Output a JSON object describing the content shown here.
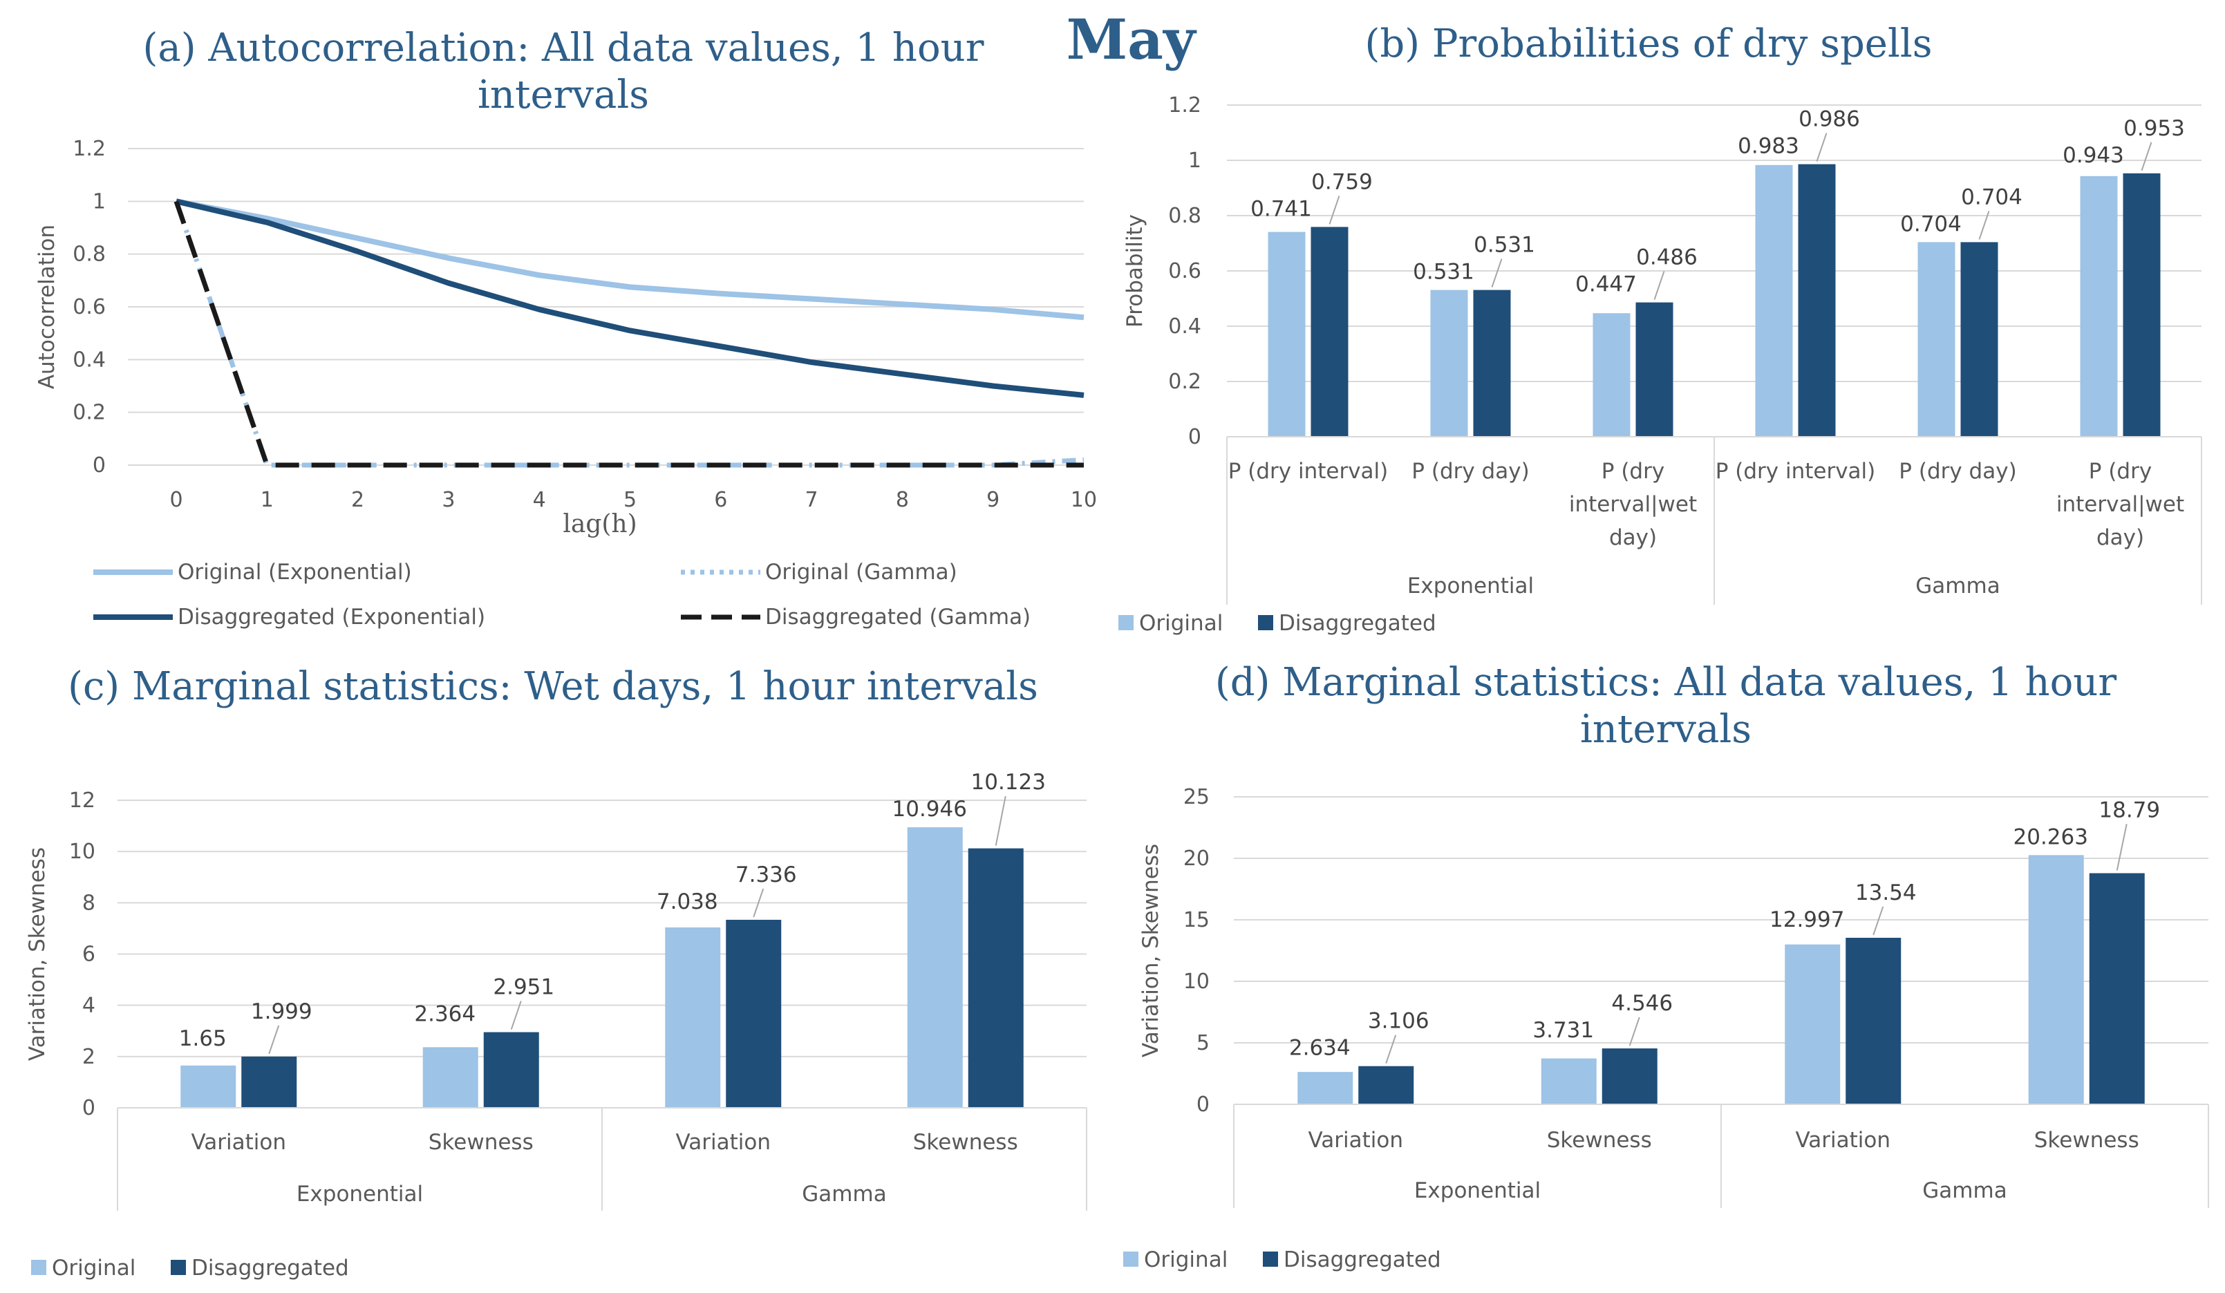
{
  "month": "May",
  "chart_data": [
    {
      "id": "a",
      "type": "line",
      "title": "(a) Autocorrelation: All data values, 1 hour intervals",
      "title_lines": [
        "(a) Autocorrelation: All data values, 1 hour",
        "intervals"
      ],
      "xlabel": "lag(h)",
      "ylabel": "Autocorrelation",
      "x": [
        0,
        1,
        2,
        3,
        4,
        5,
        6,
        7,
        8,
        9,
        10
      ],
      "x_tick_labels": [
        "0",
        "1",
        "2",
        "3",
        "4",
        "5",
        "6",
        "7",
        "8",
        "9",
        "10"
      ],
      "ylim": [
        0,
        1.2
      ],
      "y_ticks": [
        "0",
        "0.2",
        "0.4",
        "0.6",
        "0.8",
        "1",
        "1.2"
      ],
      "series": [
        {
          "name": "Original (Exponential)",
          "color": "#9dc3e6",
          "style": "solid",
          "values": [
            1,
            0.935,
            0.86,
            0.785,
            0.72,
            0.675,
            0.65,
            0.63,
            0.61,
            0.59,
            0.56
          ]
        },
        {
          "name": "Original (Gamma)",
          "color": "#9dc3e6",
          "style": "dot-dash",
          "values": [
            1,
            0,
            0,
            0,
            0,
            0,
            0,
            0,
            0,
            0,
            0.02
          ]
        },
        {
          "name": "Disaggregated (Exponential)",
          "color": "#1f4e79",
          "style": "solid",
          "values": [
            1,
            0.92,
            0.81,
            0.69,
            0.59,
            0.51,
            0.45,
            0.39,
            0.345,
            0.3,
            0.265
          ]
        },
        {
          "name": "Disaggregated (Gamma)",
          "color": "#1a1a1a",
          "style": "dashed",
          "values": [
            1,
            0,
            0,
            0,
            0,
            0,
            0,
            0,
            0,
            0,
            0
          ]
        }
      ]
    },
    {
      "id": "b",
      "type": "bar",
      "title": "(b) Probabilities of dry spells",
      "ylabel": "Probability",
      "ylim": [
        0,
        1.2
      ],
      "y_ticks": [
        "0",
        "0.2",
        "0.4",
        "0.6",
        "0.8",
        "1",
        "1.2"
      ],
      "categories": [
        {
          "label_lines": [
            "P (dry interval)"
          ],
          "group": "Exponential"
        },
        {
          "label_lines": [
            "P (dry day)"
          ],
          "group": "Exponential"
        },
        {
          "label_lines": [
            "P (dry",
            "interval|wet",
            "day)"
          ],
          "group": "Exponential"
        },
        {
          "label_lines": [
            "P (dry interval)"
          ],
          "group": "Gamma"
        },
        {
          "label_lines": [
            "P (dry day)"
          ],
          "group": "Gamma"
        },
        {
          "label_lines": [
            "P (dry",
            "interval|wet",
            "day)"
          ],
          "group": "Gamma"
        }
      ],
      "groups": [
        "Exponential",
        "Gamma"
      ],
      "series": [
        {
          "name": "Original",
          "color": "#9dc3e6",
          "values": [
            0.741,
            0.531,
            0.447,
            0.983,
            0.704,
            0.943
          ],
          "labels": [
            "0.741",
            "0.531",
            "0.447",
            "0.983",
            "0.704",
            "0.943"
          ]
        },
        {
          "name": "Disaggregated",
          "color": "#1f4e79",
          "values": [
            0.759,
            0.531,
            0.486,
            0.986,
            0.704,
            0.953
          ],
          "labels": [
            "0.759",
            "0.531",
            "0.486",
            "0.986",
            "0.704",
            "0.953"
          ]
        }
      ]
    },
    {
      "id": "c",
      "type": "bar",
      "title": "(c) Marginal statistics: Wet days, 1 hour intervals",
      "ylabel": "Variation, Skewness",
      "ylim": [
        0,
        12
      ],
      "y_ticks": [
        "0",
        "2",
        "4",
        "6",
        "8",
        "10",
        "12"
      ],
      "categories": [
        {
          "label_lines": [
            "Variation"
          ],
          "group": "Exponential"
        },
        {
          "label_lines": [
            "Skewness"
          ],
          "group": "Exponential"
        },
        {
          "label_lines": [
            "Variation"
          ],
          "group": "Gamma"
        },
        {
          "label_lines": [
            "Skewness"
          ],
          "group": "Gamma"
        }
      ],
      "groups": [
        "Exponential",
        "Gamma"
      ],
      "series": [
        {
          "name": "Original",
          "color": "#9dc3e6",
          "values": [
            1.65,
            2.364,
            7.038,
            10.946
          ],
          "labels": [
            "1.65",
            "2.364",
            "7.038",
            "10.946"
          ]
        },
        {
          "name": "Disaggregated",
          "color": "#1f4e79",
          "values": [
            1.999,
            2.951,
            7.336,
            10.123
          ],
          "labels": [
            "1.999",
            "2.951",
            "7.336",
            "10.123"
          ]
        }
      ]
    },
    {
      "id": "d",
      "type": "bar",
      "title": "(d) Marginal statistics: All data values, 1 hour intervals",
      "title_lines": [
        "(d) Marginal statistics: All data values, 1 hour",
        "intervals"
      ],
      "ylabel": "Variation, Skewness",
      "ylim": [
        0,
        25
      ],
      "y_ticks": [
        "0",
        "5",
        "10",
        "15",
        "20",
        "25"
      ],
      "categories": [
        {
          "label_lines": [
            "Variation"
          ],
          "group": "Exponential"
        },
        {
          "label_lines": [
            "Skewness"
          ],
          "group": "Exponential"
        },
        {
          "label_lines": [
            "Variation"
          ],
          "group": "Gamma"
        },
        {
          "label_lines": [
            "Skewness"
          ],
          "group": "Gamma"
        }
      ],
      "groups": [
        "Exponential",
        "Gamma"
      ],
      "series": [
        {
          "name": "Original",
          "color": "#9dc3e6",
          "values": [
            2.634,
            3.731,
            12.997,
            20.263
          ],
          "labels": [
            "2.634",
            "3.731",
            "12.997",
            "20.263"
          ]
        },
        {
          "name": "Disaggregated",
          "color": "#1f4e79",
          "values": [
            3.106,
            4.546,
            13.54,
            18.79
          ],
          "labels": [
            "3.106",
            "4.546",
            "13.54",
            "18.79"
          ]
        }
      ]
    }
  ]
}
